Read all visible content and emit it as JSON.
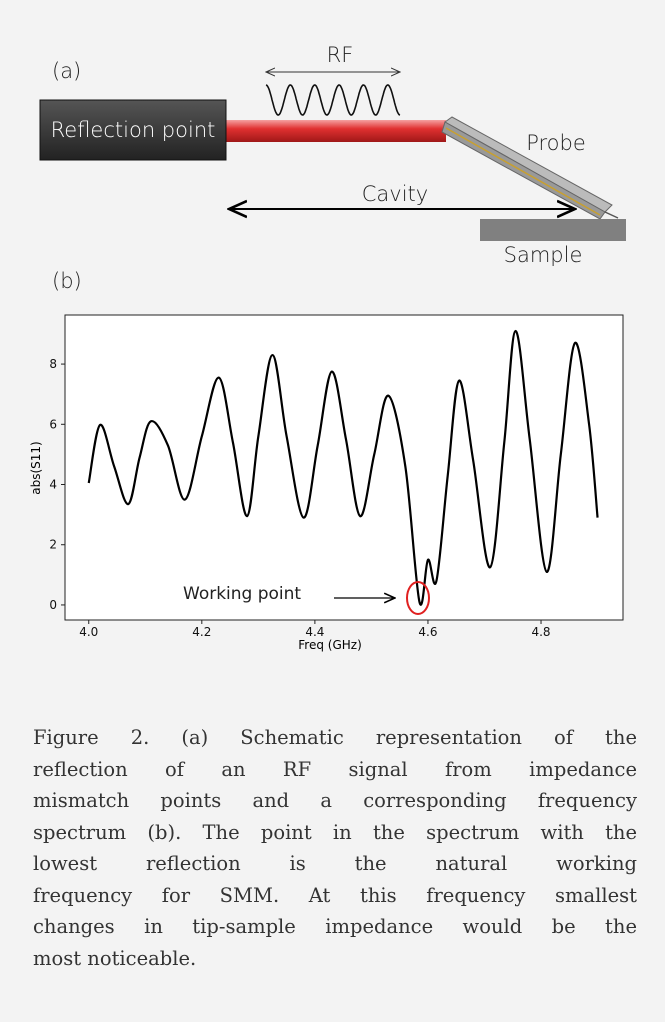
{
  "schematic": {
    "label": "(a)",
    "rf": "RF",
    "reflection_point": "Reflection point",
    "probe": "Probe",
    "cavity": "Cavity",
    "sample": "Sample"
  },
  "chart_data": {
    "type": "line",
    "label": "(b)",
    "x_label": "Freq (GHz)",
    "y_label": "abs(S11)",
    "annotation": "Working point",
    "x": [
      4.0,
      4.02,
      4.045,
      4.07,
      4.09,
      4.11,
      4.14,
      4.17,
      4.2,
      4.23,
      4.255,
      4.28,
      4.3,
      4.325,
      4.35,
      4.38,
      4.405,
      4.43,
      4.455,
      4.48,
      4.505,
      4.53,
      4.56,
      4.585,
      4.6,
      4.615,
      4.635,
      4.655,
      4.68,
      4.71,
      4.735,
      4.755,
      4.78,
      4.81,
      4.835,
      4.86,
      4.885,
      4.9
    ],
    "values": [
      4.05,
      5.98,
      4.6,
      3.35,
      4.9,
      6.1,
      5.3,
      3.5,
      5.6,
      7.55,
      5.4,
      2.95,
      5.6,
      8.3,
      5.6,
      2.9,
      5.3,
      7.75,
      5.5,
      2.95,
      5.0,
      6.95,
      4.6,
      0.1,
      1.5,
      0.8,
      4.3,
      7.45,
      4.8,
      1.25,
      5.4,
      9.1,
      5.5,
      1.1,
      5.0,
      8.7,
      6.0,
      2.9
    ],
    "color": "#000000",
    "xlim": [
      3.958,
      4.945
    ],
    "ylim": [
      -0.5,
      9.63
    ],
    "xticks": [
      {
        "value": 4.0,
        "label": "4.0"
      },
      4.2,
      4.4,
      4.6,
      4.8
    ],
    "yticks": [
      0,
      2,
      4,
      6,
      8
    ]
  },
  "caption": {
    "lines": [
      "Figure 2. (a) Schematic representation of the",
      "reflection of an RF signal from impedance",
      "mismatch points and a corresponding frequency",
      "spectrum (b). The point in the spectrum with the",
      "lowest reflection is the natural working",
      "frequency for SMM. At this frequency smallest",
      "changes in tip-sample impedance would be the",
      "most noticeable."
    ]
  }
}
